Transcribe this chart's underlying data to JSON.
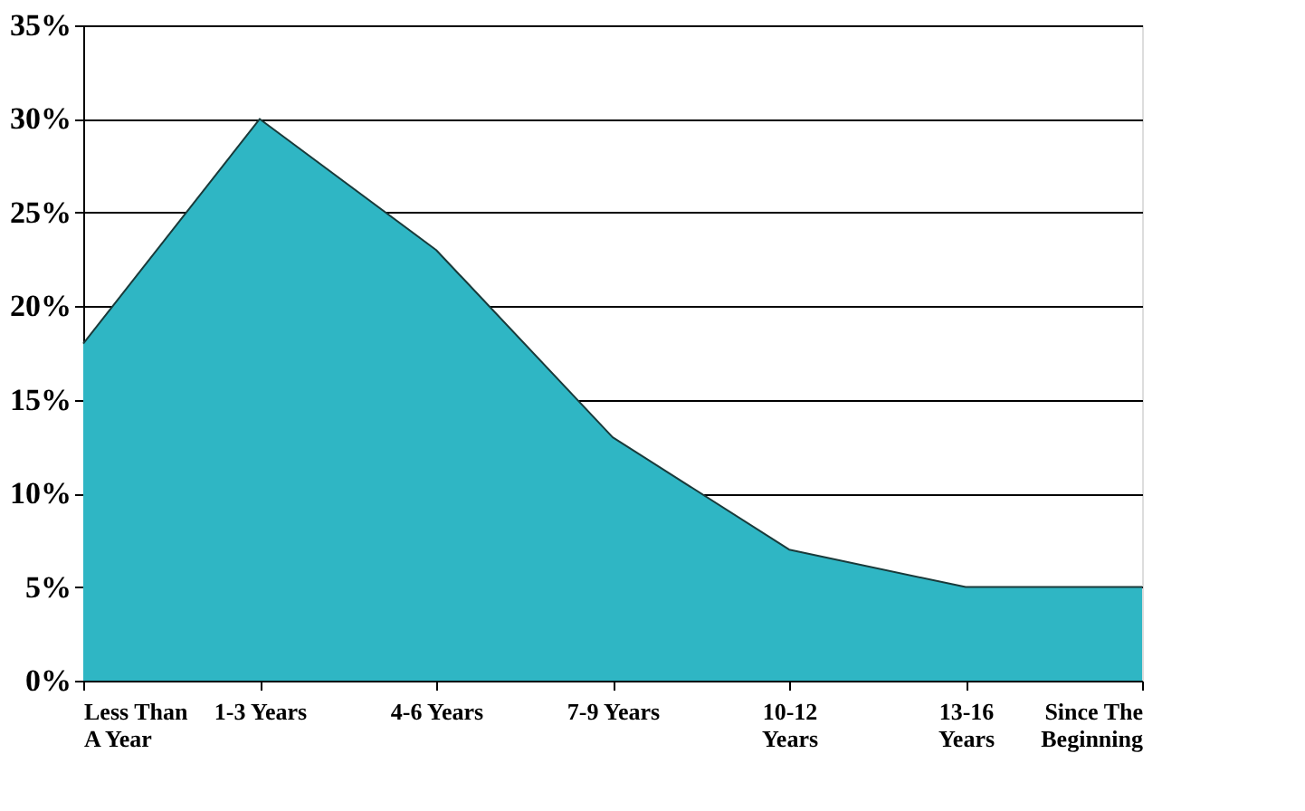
{
  "chart_data": {
    "type": "area",
    "categories": [
      "Less Than\nA Year",
      "1-3 Years",
      "4-6 Years",
      "7-9 Years",
      "10-12\nYears",
      "13-16\nYears",
      "Since The\nBeginning"
    ],
    "series": [
      {
        "color": "#2fb6c4",
        "values": [
          18,
          30,
          23,
          13,
          7,
          5,
          5
        ]
      }
    ],
    "ylim": [
      0,
      35
    ],
    "yticks": [
      {
        "value": 0,
        "label": "0%"
      },
      {
        "value": 5,
        "label": "5%"
      },
      {
        "value": 10,
        "label": "10%"
      },
      {
        "value": 15,
        "label": "15%"
      },
      {
        "value": 20,
        "label": "20%"
      },
      {
        "value": 25,
        "label": "25%"
      },
      {
        "value": 30,
        "label": "30%"
      },
      {
        "value": 35,
        "label": "35%"
      }
    ],
    "grid": "y"
  }
}
